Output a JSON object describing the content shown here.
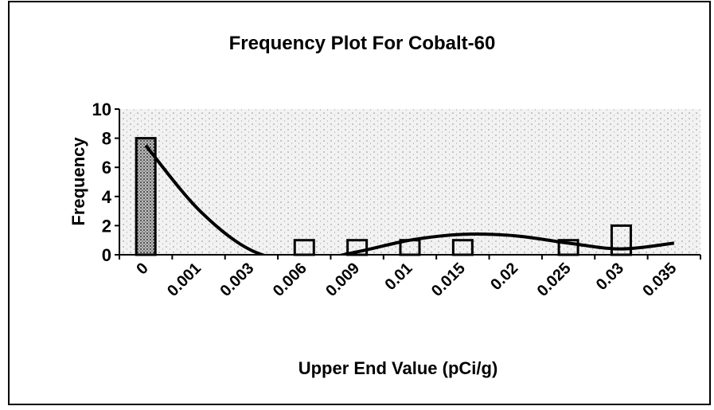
{
  "chart_data": {
    "type": "bar",
    "title": "Frequency Plot For Cobalt-60",
    "x_label": "Upper End Value (pCi/g)",
    "y_label": "Frequency",
    "categories": [
      "0",
      "0.001",
      "0.003",
      "0.006",
      "0.009",
      "0.01",
      "0.015",
      "0.02",
      "0.025",
      "0.03",
      "0.035"
    ],
    "series": [
      {
        "name": "Frequency",
        "type": "bar",
        "color": "#ffffff",
        "values": [
          8,
          0,
          0,
          1,
          1,
          1,
          1,
          0,
          1,
          2,
          0
        ]
      },
      {
        "name": "Trend",
        "type": "line",
        "color": "#000000",
        "values": [
          7.5,
          3.1,
          0.3,
          -0.4,
          0.2,
          1.0,
          1.4,
          1.3,
          0.8,
          0.4,
          0.8
        ]
      }
    ],
    "ylim": [
      0,
      10
    ],
    "yticks": [
      0,
      2,
      4,
      6,
      8,
      10
    ],
    "grid": false
  }
}
